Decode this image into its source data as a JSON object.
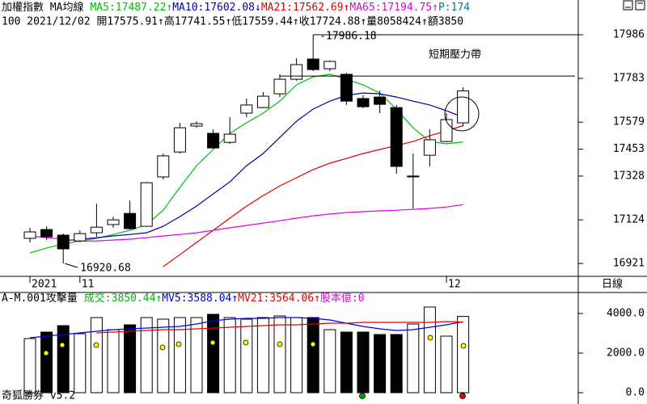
{
  "chart_data": [
    {
      "type": "candlestick",
      "title": "加權指數 MA均線",
      "subtitle": "100 2021/12/02 開17575.91↑高17741.55↑低17559.44↑收17724.88↑量8058424↑額3850",
      "categories": [
        "2021",
        null,
        null,
        "11",
        null,
        null,
        null,
        null,
        null,
        null,
        null,
        null,
        null,
        null,
        null,
        null,
        null,
        null,
        null,
        null,
        null,
        null,
        null,
        null,
        null,
        "12",
        null
      ],
      "open": [
        17038,
        17079,
        17053,
        17026,
        17064,
        17102,
        17154,
        17094,
        17324,
        17440,
        17561,
        17527,
        17485,
        17621,
        17647,
        17711,
        17779,
        17873,
        17828,
        17802,
        17689,
        17696,
        17647,
        17328,
        17425,
        17489,
        17575.91
      ],
      "high": [
        17087,
        17094,
        17060,
        17075,
        17199,
        17139,
        17214,
        17301,
        17433,
        17576,
        17583,
        17546,
        17602,
        17689,
        17719,
        17802,
        17877,
        17986.18,
        17866,
        17809,
        17704,
        17726,
        17659,
        17433,
        17546,
        17621,
        17741.55
      ],
      "low": [
        17019,
        17030,
        16920.68,
        17019,
        17045,
        17087,
        17079,
        17094,
        17312,
        17433,
        17553,
        17455,
        17478,
        17602,
        17644,
        17696,
        17772,
        17817,
        17817,
        17659,
        17644,
        17621,
        17339,
        17177,
        17373,
        17485,
        17559.44
      ],
      "close": [
        17068,
        17045,
        16989,
        17060,
        17090,
        17124,
        17083,
        17297,
        17422,
        17553,
        17572,
        17459,
        17523,
        17659,
        17700,
        17779,
        17847,
        17824,
        17862,
        17677,
        17651,
        17662,
        17373,
        17328,
        17497,
        17591,
        17724.88
      ],
      "up_color": "#ffffff",
      "down_color": "#000000",
      "series": [
        {
          "name": "MA5:17487.22↑",
          "color": "#00c000",
          "values": [
            16970,
            16993,
            17011,
            17026,
            17038,
            17056,
            17075,
            17102,
            17169,
            17275,
            17376,
            17452,
            17527,
            17576,
            17621,
            17677,
            17753,
            17790,
            17802,
            17779,
            17753,
            17715,
            17640,
            17553,
            17489,
            17478,
            17487.22
          ]
        },
        {
          "name": "MA10:17602.08↓",
          "color": "#0000b0",
          "values": [
            null,
            null,
            17026,
            17034,
            17041,
            17049,
            17056,
            17064,
            17094,
            17139,
            17188,
            17245,
            17301,
            17376,
            17433,
            17508,
            17583,
            17640,
            17677,
            17704,
            17715,
            17711,
            17696,
            17677,
            17659,
            17632,
            17602.08
          ]
        },
        {
          "name": "MA21:17562.69↑",
          "color": "#e00000",
          "values": [
            null,
            null,
            null,
            null,
            null,
            null,
            null,
            null,
            16906,
            16962,
            17019,
            17075,
            17132,
            17188,
            17237,
            17282,
            17320,
            17358,
            17388,
            17410,
            17433,
            17452,
            17470,
            17489,
            17516,
            17538,
            17562.69
          ]
        },
        {
          "name": "MA65:17194.75↑",
          "color": "#e000e0",
          "values": [
            17049,
            17041,
            17034,
            17026,
            17026,
            17030,
            17034,
            17041,
            17049,
            17056,
            17064,
            17075,
            17087,
            17098,
            17109,
            17120,
            17132,
            17143,
            17151,
            17158,
            17162,
            17166,
            17169,
            17173,
            17177,
            17184,
            17194.75
          ]
        }
      ],
      "tail": {
        "text": "P:174",
        "color": "#008080"
      },
      "high_label": "-17986.18",
      "low_label": "16920.68",
      "resistance": 17794,
      "resistance_label": "短期壓力帶",
      "ylim": [
        16861,
        18148
      ],
      "yticks": [
        17986,
        17783,
        17579,
        17453,
        17328,
        17124,
        16921
      ]
    },
    {
      "type": "volume",
      "title": "A-M.001攻擊量",
      "period_label": "日線",
      "series": [
        {
          "name": "成交:3850.44↑",
          "color": "#00b000",
          "style": "bar",
          "values": [
            2734,
            3060,
            3386,
            2978,
            3794,
            3182,
            3427,
            3794,
            3713,
            3794,
            3794,
            3958,
            3794,
            3713,
            3794,
            3876,
            3794,
            3794,
            3182,
            3060,
            3060,
            2938,
            2938,
            3468,
            4325,
            2856,
            3850.44
          ]
        },
        {
          "name": "MV5:3588.04↑",
          "color": "#0000e0",
          "values": [
            2774,
            2856,
            2938,
            3019,
            3101,
            3182,
            3223,
            3264,
            3305,
            3346,
            3468,
            3631,
            3713,
            3754,
            3754,
            3794,
            3794,
            3754,
            3672,
            3509,
            3346,
            3223,
            3142,
            3182,
            3305,
            3427,
            3588.04
          ]
        },
        {
          "name": "MV21:3564.06↑",
          "color": "#e00000",
          "values": [
            null,
            null,
            null,
            null,
            3019,
            3060,
            3101,
            3142,
            3182,
            3182,
            3223,
            3264,
            3305,
            3346,
            3386,
            3427,
            3427,
            3468,
            3509,
            3509,
            3550,
            3550,
            3550,
            3550,
            3550,
            3590,
            3564.06
          ]
        }
      ],
      "tail": {
        "text": "股本億:0",
        "color": "#e000e0"
      },
      "ylim": [
        0,
        4733
      ],
      "yticks": [
        {
          "value": 4000,
          "label": "4000.0"
        },
        {
          "value": 2000,
          "label": "2000.0"
        },
        {
          "value": 0,
          "label": "0.0"
        }
      ]
    }
  ],
  "footer": "奇狐勝券 v5.2"
}
